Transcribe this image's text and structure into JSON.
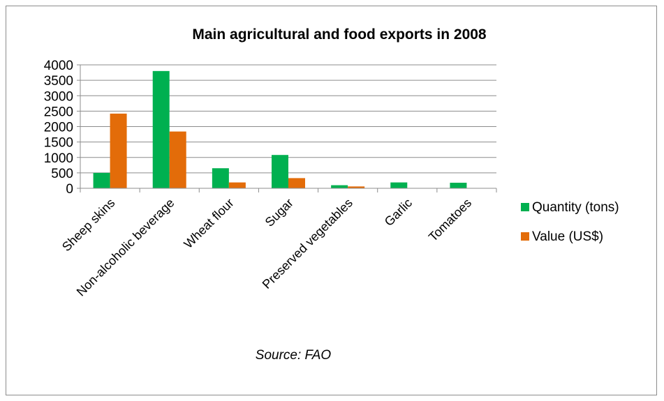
{
  "chart_data": {
    "type": "bar",
    "title": "Main agricultural and food exports in 2008",
    "categories": [
      "Sheep skins",
      "Non-alcoholic beverage",
      "Wheat flour",
      "Sugar",
      "Preserved vegetables",
      "Garlic",
      "Tomatoes"
    ],
    "series": [
      {
        "name": "Quantity (tons)",
        "color": "#00b050",
        "values": [
          500,
          3800,
          650,
          1080,
          100,
          190,
          180
        ]
      },
      {
        "name": "Value (US$)",
        "color": "#e36c09",
        "values": [
          2420,
          1840,
          190,
          330,
          60,
          0,
          0
        ]
      }
    ],
    "yticks": [
      0,
      500,
      1000,
      1500,
      2000,
      2500,
      3000,
      3500,
      4000
    ],
    "ylim": [
      0,
      4000
    ],
    "grid": true,
    "legend": "right",
    "source": "Source: FAO"
  }
}
